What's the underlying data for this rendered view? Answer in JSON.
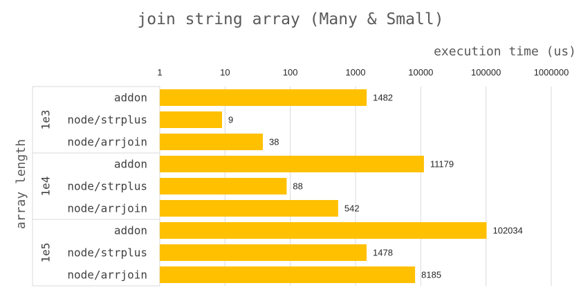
{
  "chart_data": {
    "type": "bar",
    "orientation": "horizontal",
    "title": "join string array (Many & Small)",
    "xlabel": "execution time (us)",
    "ylabel": "array length",
    "x_scale": "log",
    "xlim": [
      1,
      1000000
    ],
    "x_ticks": [
      "1",
      "10",
      "100",
      "1000",
      "10000",
      "100000",
      "1000000"
    ],
    "x_axis_position": "top",
    "grid": true,
    "legend": "none",
    "bar_color": "#FFC000",
    "groups": [
      {
        "label": "1e3",
        "categories": [
          "addon",
          "node/strplus",
          "node/arrjoin"
        ],
        "values": [
          1482,
          9,
          38
        ]
      },
      {
        "label": "1e4",
        "categories": [
          "addon",
          "node/strplus",
          "node/arrjoin"
        ],
        "values": [
          11179,
          88,
          542
        ]
      },
      {
        "label": "1e5",
        "categories": [
          "addon",
          "node/strplus",
          "node/arrjoin"
        ],
        "values": [
          102034,
          1478,
          8185
        ]
      }
    ]
  }
}
